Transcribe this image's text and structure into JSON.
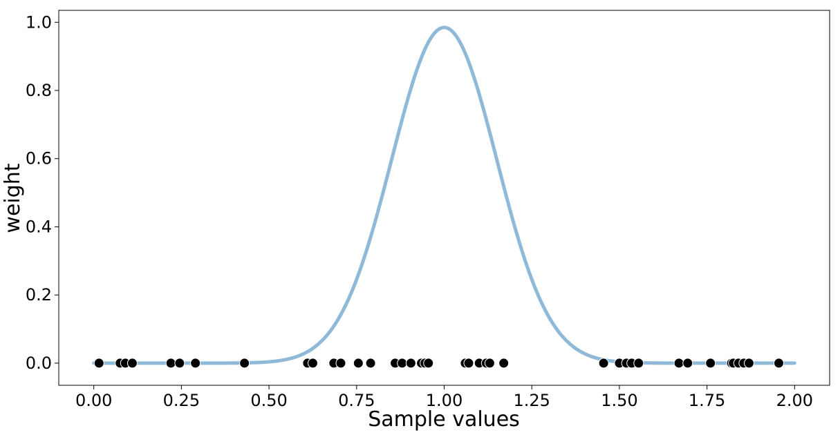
{
  "chart_data": {
    "type": "scatter",
    "xlabel": "Sample values",
    "ylabel": "weight",
    "xlim": [
      -0.1,
      2.1
    ],
    "ylim": [
      -0.065,
      1.035
    ],
    "x_ticks": [
      0.0,
      0.25,
      0.5,
      0.75,
      1.0,
      1.25,
      1.5,
      1.75,
      2.0
    ],
    "x_tick_labels": [
      "0.00",
      "0.25",
      "0.50",
      "0.75",
      "1.00",
      "1.25",
      "1.50",
      "1.75",
      "2.00"
    ],
    "y_ticks": [
      0.0,
      0.2,
      0.4,
      0.6,
      0.8,
      1.0
    ],
    "y_tick_labels": [
      "0.0",
      "0.2",
      "0.4",
      "0.6",
      "0.8",
      "1.0"
    ],
    "grid": false,
    "colors": {
      "curve": "#8fb9d8",
      "points": "#000000",
      "axes": "#000000"
    },
    "curve": {
      "type": "gaussian",
      "mean": 1.0,
      "sigma": 0.15,
      "peak": 0.985,
      "x_range": [
        0.0,
        2.0
      ]
    },
    "points": {
      "y": 0.0,
      "x": [
        0.015,
        0.075,
        0.09,
        0.11,
        0.22,
        0.245,
        0.29,
        0.43,
        0.61,
        0.625,
        0.685,
        0.705,
        0.755,
        0.79,
        0.86,
        0.88,
        0.905,
        0.935,
        0.945,
        0.955,
        1.06,
        1.07,
        1.1,
        1.12,
        1.13,
        1.17,
        1.455,
        1.5,
        1.52,
        1.535,
        1.555,
        1.67,
        1.695,
        1.76,
        1.82,
        1.825,
        1.84,
        1.855,
        1.87,
        1.955
      ]
    }
  }
}
